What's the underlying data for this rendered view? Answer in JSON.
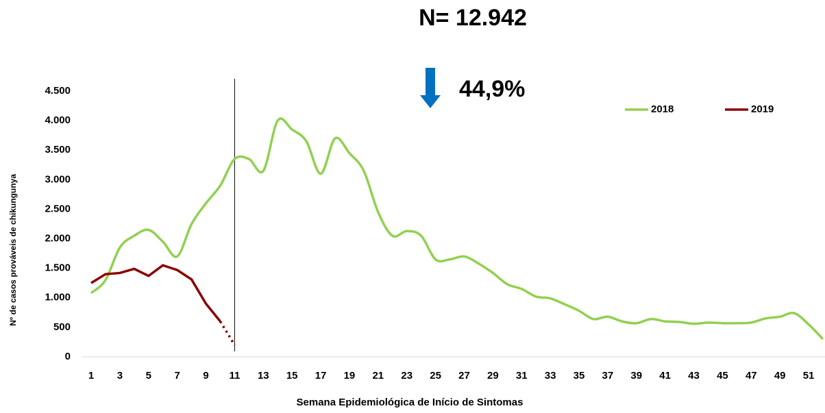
{
  "chart_data": {
    "type": "line",
    "title": "N= 12.942",
    "annotation": "44,9%",
    "xlabel": "Semana Epidemiológica de Início de Sintomas",
    "ylabel": "Nº de casos prováveis de chikungunya",
    "x": [
      1,
      2,
      3,
      4,
      5,
      6,
      7,
      8,
      9,
      10,
      11,
      12,
      13,
      14,
      15,
      16,
      17,
      18,
      19,
      20,
      21,
      22,
      23,
      24,
      25,
      26,
      27,
      28,
      29,
      30,
      31,
      32,
      33,
      34,
      35,
      36,
      37,
      38,
      39,
      40,
      41,
      42,
      43,
      44,
      45,
      46,
      47,
      48,
      49,
      50,
      51,
      52
    ],
    "xlim": [
      1,
      52
    ],
    "xticks": [
      1,
      3,
      5,
      7,
      9,
      11,
      13,
      15,
      17,
      19,
      21,
      23,
      25,
      27,
      29,
      31,
      33,
      35,
      37,
      39,
      41,
      43,
      45,
      47,
      49,
      51
    ],
    "ylim": [
      0,
      4500
    ],
    "yticks": [
      0,
      {
        "value": 500,
        "label": "500"
      },
      {
        "value": 1000,
        "label": "1.000"
      },
      {
        "value": 1500,
        "label": "1.500"
      },
      {
        "value": 2000,
        "label": "2.000"
      },
      {
        "value": 2500,
        "label": "2.500"
      },
      {
        "value": 3000,
        "label": "3.000"
      },
      {
        "value": 3500,
        "label": "3.500"
      },
      {
        "value": 4000,
        "label": "4.000"
      },
      {
        "value": 4500,
        "label": "4.500"
      }
    ],
    "vline": 11,
    "legend": "top-right",
    "series": [
      {
        "name": "2018",
        "color": "#92d050",
        "smooth": true,
        "values": [
          1080,
          1300,
          1850,
          2050,
          2150,
          1950,
          1700,
          2250,
          2600,
          2900,
          3350,
          3350,
          3150,
          4000,
          3850,
          3650,
          3100,
          3700,
          3450,
          3150,
          2450,
          2050,
          2130,
          2050,
          1650,
          1650,
          1700,
          1580,
          1420,
          1230,
          1150,
          1020,
          990,
          890,
          780,
          640,
          680,
          600,
          570,
          640,
          600,
          590,
          560,
          580,
          570,
          570,
          580,
          650,
          680,
          740,
          550,
          300
        ]
      },
      {
        "name": "2019",
        "color": "#8b0000",
        "smooth": false,
        "dotted_last_segment": true,
        "values": [
          1250,
          1400,
          1420,
          1490,
          1370,
          1550,
          1470,
          1310,
          900,
          600,
          200,
          null,
          null,
          null,
          null,
          null,
          null,
          null,
          null,
          null,
          null,
          null,
          null,
          null,
          null,
          null,
          null,
          null,
          null,
          null,
          null,
          null,
          null,
          null,
          null,
          null,
          null,
          null,
          null,
          null,
          null,
          null,
          null,
          null,
          null,
          null,
          null,
          null,
          null,
          null,
          null,
          null
        ]
      }
    ]
  }
}
